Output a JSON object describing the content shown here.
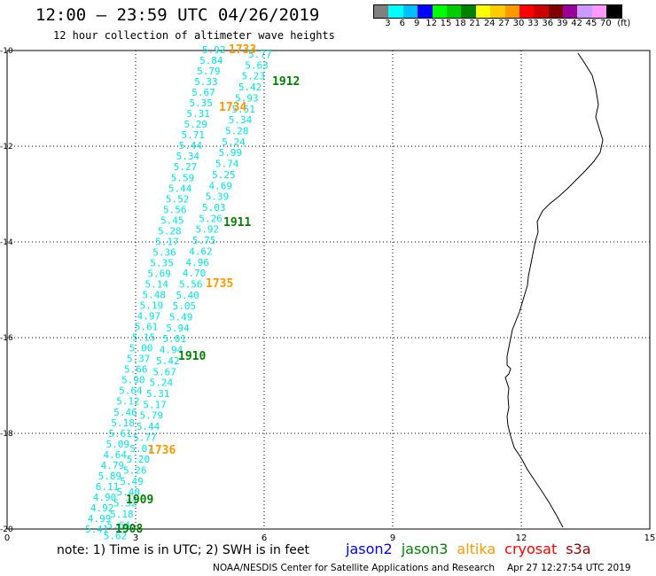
{
  "header": {
    "title": "12:00 – 23:59 UTC 04/26/2019",
    "subtitle": "12 hour collection of altimeter wave heights"
  },
  "colorbar": {
    "colors": [
      "#808080",
      "#00ffff",
      "#00bfff",
      "#0000ff",
      "#00ff00",
      "#00cc00",
      "#008000",
      "#ffff00",
      "#ffcc00",
      "#ff9900",
      "#ff0000",
      "#cc0000",
      "#800000",
      "#990099",
      "#cc99ff",
      "#ff99ff",
      "#000000"
    ],
    "labels": [
      "3",
      "6",
      "9",
      "12",
      "15",
      "18",
      "21",
      "24",
      "27",
      "30",
      "33",
      "36",
      "39",
      "42",
      "45",
      "70",
      "(ft)"
    ]
  },
  "map": {
    "x_ticks": [
      "0",
      "3",
      "6",
      "9",
      "12",
      "15"
    ],
    "y_ticks": [
      "-10",
      "-12",
      "-14",
      "-16",
      "-18",
      "-20"
    ],
    "track_color": "#00e5e5",
    "track_left": [
      "5.92",
      "5.84",
      "5.79",
      "5.33",
      "5.67",
      "5.35",
      "5.31",
      "5.29",
      "5.71",
      "5.44",
      "5.34",
      "5.27",
      "5.59",
      "5.44",
      "5.52",
      "5.56",
      "5.45",
      "5.28",
      "5.17",
      "5.36",
      "5.35",
      "5.69",
      "5.14",
      "5.48",
      "5.19",
      "4.97",
      "5.61",
      "5.15",
      "5.00",
      "5.37",
      "5.66",
      "5.90",
      "5.64",
      "5.12",
      "5.46",
      "5.18",
      "5.61",
      "5.09",
      "4.64",
      "4.79",
      "5.89",
      "6.11",
      "4.90",
      "4.92",
      "4.99",
      "5.41"
    ],
    "track_right": [
      "5.77",
      "5.63",
      "5.23",
      "5.42",
      "5.93",
      "5.51",
      "5.34",
      "5.28",
      "5.24",
      "5.99",
      "5.74",
      "5.25",
      "4.69",
      "5.39",
      "5.03",
      "5.26",
      "5.92",
      "5.75",
      "4.62",
      "4.96",
      "4.70",
      "5.56",
      "5.40",
      "5.05",
      "5.49",
      "5.94",
      "5.01",
      "4.94",
      "5.42",
      "5.67",
      "5.24",
      "5.31",
      "5.17",
      "5.79",
      "5.44",
      "5.77",
      "5.07",
      "5.20",
      "5.26",
      "5.49",
      "5.40",
      "5.32",
      "5.18",
      "5.64",
      "5.62",
      "5.43"
    ],
    "time_labels": [
      {
        "text": "1733",
        "sat": "altika"
      },
      {
        "text": "1912",
        "sat": "jason3"
      },
      {
        "text": "1734",
        "sat": "altika"
      },
      {
        "text": "1911",
        "sat": "jason3"
      },
      {
        "text": "1735",
        "sat": "altika"
      },
      {
        "text": "1910",
        "sat": "jason3"
      },
      {
        "text": "1736",
        "sat": "altika"
      },
      {
        "text": "1909",
        "sat": "jason3"
      },
      {
        "text": "1908",
        "sat": "jason3"
      }
    ]
  },
  "footer": {
    "note": "note:  1) Time is in UTC;  2) SWH is in feet",
    "satellites": [
      {
        "name": "jason2",
        "color": "#0000ff"
      },
      {
        "name": "jason3",
        "color": "#008000"
      },
      {
        "name": "altika",
        "color": "#ff9900"
      },
      {
        "name": "cryosat",
        "color": "#ff0000"
      },
      {
        "name": "s3a",
        "color": "#990000"
      }
    ],
    "credit": "NOAA/NESDIS Center for Satellite Applications and Research",
    "timestamp": "Apr 27 12:27:54 UTC 2019"
  }
}
